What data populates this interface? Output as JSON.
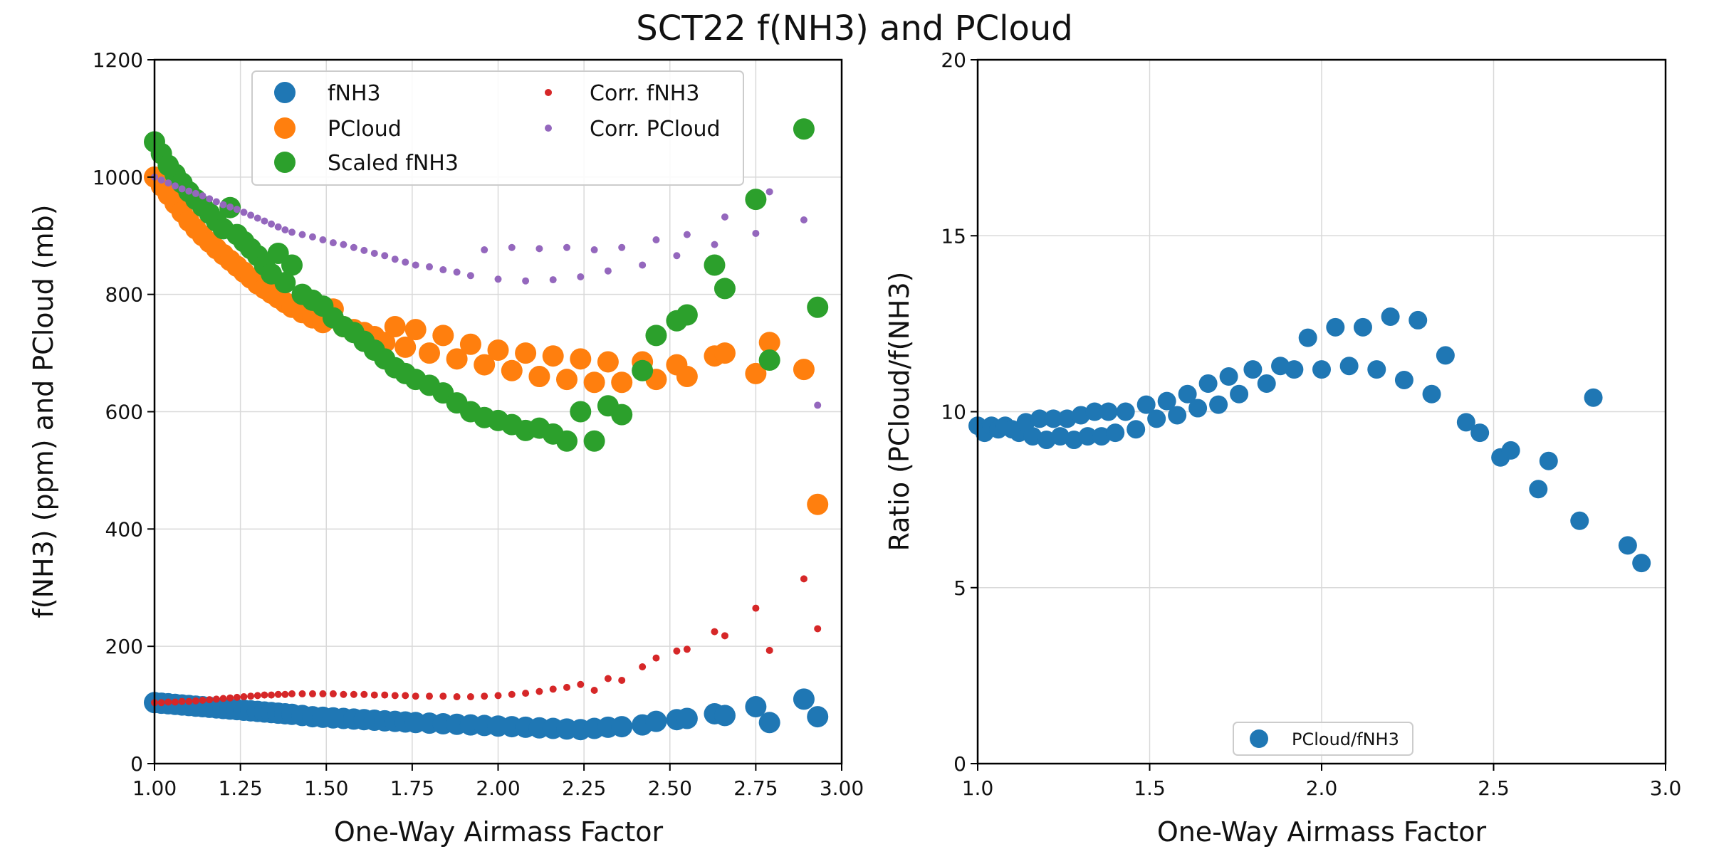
{
  "figure": {
    "title": "SCT22 f(NH3) and PCloud"
  },
  "chart_data": [
    {
      "type": "scatter",
      "xlabel": "One-Way Airmass Factor",
      "ylabel": "f(NH3) (ppm) and PCloud (mb)",
      "xlim": [
        1.0,
        3.0
      ],
      "ylim": [
        0,
        1200
      ],
      "x_ticks": [
        "1.00",
        "1.25",
        "1.50",
        "1.75",
        "2.00",
        "2.25",
        "2.50",
        "2.75",
        "3.00"
      ],
      "y_ticks": [
        "0",
        "200",
        "400",
        "600",
        "800",
        "1000",
        "1200"
      ],
      "grid": true,
      "legend": {
        "position": "top-center",
        "columns": 2,
        "entries": [
          "fNH3",
          "PCloud",
          "Scaled fNH3",
          "Corr. fNH3",
          "Corr. PCloud"
        ]
      },
      "series": [
        {
          "name": "fNH3",
          "color": "#1f77b4",
          "marker_size": "large",
          "x": [
            1.0,
            1.02,
            1.04,
            1.06,
            1.08,
            1.1,
            1.12,
            1.14,
            1.16,
            1.18,
            1.2,
            1.22,
            1.24,
            1.26,
            1.28,
            1.3,
            1.32,
            1.34,
            1.36,
            1.38,
            1.4,
            1.43,
            1.46,
            1.49,
            1.52,
            1.55,
            1.58,
            1.61,
            1.64,
            1.67,
            1.7,
            1.73,
            1.76,
            1.8,
            1.84,
            1.88,
            1.92,
            1.96,
            2.0,
            2.04,
            2.08,
            2.12,
            2.16,
            2.2,
            2.24,
            2.28,
            2.32,
            2.36,
            2.42,
            2.46,
            2.52,
            2.55,
            2.63,
            2.66,
            2.75,
            2.79,
            2.89,
            2.93
          ],
          "y": [
            104,
            103,
            102,
            101,
            100,
            99,
            98,
            97,
            96,
            95,
            94,
            93,
            92,
            91,
            90,
            89,
            88,
            87,
            86,
            85,
            84,
            82,
            80,
            79,
            78,
            77,
            76,
            75,
            74,
            73,
            72,
            71,
            70,
            69,
            68,
            67,
            66,
            65,
            64,
            63,
            62,
            61,
            60,
            59,
            58,
            60,
            62,
            63,
            66,
            72,
            75,
            77,
            85,
            82,
            97,
            70,
            110,
            80
          ]
        },
        {
          "name": "PCloud",
          "color": "#ff7f0e",
          "marker_size": "large",
          "x": [
            1.0,
            1.02,
            1.04,
            1.06,
            1.08,
            1.1,
            1.12,
            1.14,
            1.16,
            1.18,
            1.2,
            1.22,
            1.24,
            1.26,
            1.28,
            1.3,
            1.32,
            1.34,
            1.36,
            1.38,
            1.4,
            1.43,
            1.46,
            1.49,
            1.52,
            1.55,
            1.58,
            1.61,
            1.64,
            1.67,
            1.7,
            1.73,
            1.76,
            1.8,
            1.84,
            1.88,
            1.92,
            1.96,
            2.0,
            2.04,
            2.08,
            2.12,
            2.16,
            2.2,
            2.24,
            2.28,
            2.32,
            2.36,
            2.42,
            2.46,
            2.52,
            2.55,
            2.63,
            2.66,
            2.75,
            2.79,
            2.89,
            2.93
          ],
          "y": [
            1000,
            985,
            970,
            955,
            940,
            925,
            912,
            900,
            889,
            878,
            868,
            858,
            848,
            838,
            828,
            818,
            810,
            802,
            794,
            786,
            778,
            769,
            760,
            752,
            775,
            745,
            740,
            735,
            728,
            718,
            745,
            710,
            740,
            700,
            730,
            690,
            715,
            680,
            705,
            670,
            700,
            660,
            695,
            655,
            690,
            650,
            685,
            650,
            685,
            655,
            680,
            660,
            695,
            700,
            665,
            718,
            672,
            442
          ]
        },
        {
          "name": "Scaled fNH3",
          "color": "#2ca02c",
          "marker_size": "large",
          "x": [
            1.0,
            1.02,
            1.04,
            1.06,
            1.08,
            1.1,
            1.12,
            1.14,
            1.16,
            1.18,
            1.2,
            1.22,
            1.24,
            1.26,
            1.28,
            1.3,
            1.32,
            1.34,
            1.36,
            1.38,
            1.4,
            1.43,
            1.46,
            1.49,
            1.52,
            1.55,
            1.58,
            1.61,
            1.64,
            1.67,
            1.7,
            1.73,
            1.76,
            1.8,
            1.84,
            1.88,
            1.92,
            1.96,
            2.0,
            2.04,
            2.08,
            2.12,
            2.16,
            2.2,
            2.24,
            2.28,
            2.32,
            2.36,
            2.42,
            2.46,
            2.52,
            2.55,
            2.63,
            2.66,
            2.75,
            2.79,
            2.89,
            2.93
          ],
          "y": [
            1060,
            1040,
            1020,
            1005,
            990,
            975,
            962,
            950,
            938,
            925,
            912,
            948,
            902,
            890,
            878,
            866,
            850,
            835,
            870,
            820,
            850,
            800,
            790,
            780,
            760,
            745,
            735,
            720,
            705,
            690,
            675,
            665,
            655,
            645,
            632,
            615,
            600,
            590,
            585,
            578,
            568,
            572,
            562,
            550,
            600,
            550,
            610,
            595,
            670,
            730,
            755,
            765,
            850,
            810,
            962,
            688,
            1082,
            778
          ]
        },
        {
          "name": "Corr. fNH3",
          "color": "#d62728",
          "marker_size": "small",
          "x": [
            1.0,
            1.02,
            1.04,
            1.06,
            1.08,
            1.1,
            1.12,
            1.14,
            1.16,
            1.18,
            1.2,
            1.22,
            1.24,
            1.26,
            1.28,
            1.3,
            1.32,
            1.34,
            1.36,
            1.38,
            1.4,
            1.43,
            1.46,
            1.49,
            1.52,
            1.55,
            1.58,
            1.61,
            1.64,
            1.67,
            1.7,
            1.73,
            1.76,
            1.8,
            1.84,
            1.88,
            1.92,
            1.96,
            2.0,
            2.04,
            2.08,
            2.12,
            2.16,
            2.2,
            2.24,
            2.28,
            2.32,
            2.36,
            2.42,
            2.46,
            2.52,
            2.55,
            2.63,
            2.66,
            2.75,
            2.79,
            2.89,
            2.93
          ],
          "y": [
            104,
            104,
            105,
            105,
            106,
            106,
            107,
            108,
            109,
            110,
            111,
            112,
            113,
            114,
            115,
            116,
            117,
            117,
            118,
            118,
            119,
            119,
            119,
            119,
            119,
            118,
            118,
            118,
            117,
            117,
            116,
            116,
            115,
            115,
            115,
            114,
            114,
            115,
            116,
            118,
            120,
            123,
            127,
            130,
            135,
            125,
            145,
            142,
            165,
            180,
            192,
            195,
            225,
            218,
            265,
            193,
            315,
            230
          ]
        },
        {
          "name": "Corr. PCloud",
          "color": "#9467bd",
          "marker_size": "small",
          "x": [
            1.0,
            1.02,
            1.04,
            1.06,
            1.08,
            1.1,
            1.12,
            1.14,
            1.16,
            1.18,
            1.2,
            1.22,
            1.24,
            1.26,
            1.28,
            1.3,
            1.32,
            1.34,
            1.36,
            1.38,
            1.4,
            1.43,
            1.46,
            1.49,
            1.52,
            1.55,
            1.58,
            1.61,
            1.64,
            1.67,
            1.7,
            1.73,
            1.76,
            1.8,
            1.84,
            1.88,
            1.92,
            1.96,
            2.0,
            2.04,
            2.08,
            2.12,
            2.16,
            2.2,
            2.24,
            2.28,
            2.32,
            2.36,
            2.42,
            2.46,
            2.52,
            2.55,
            2.63,
            2.66,
            2.75,
            2.79,
            2.89,
            2.93
          ],
          "y": [
            1000,
            995,
            990,
            985,
            980,
            976,
            972,
            968,
            963,
            958,
            953,
            949,
            945,
            940,
            935,
            930,
            925,
            920,
            915,
            910,
            906,
            902,
            898,
            893,
            888,
            885,
            880,
            875,
            870,
            866,
            860,
            855,
            850,
            847,
            842,
            838,
            832,
            876,
            826,
            880,
            823,
            878,
            825,
            880,
            830,
            876,
            840,
            880,
            850,
            893,
            866,
            902,
            885,
            932,
            904,
            975,
            927,
            611
          ]
        }
      ]
    },
    {
      "type": "scatter",
      "xlabel": "One-Way Airmass Factor",
      "ylabel": "Ratio (PCloud/f(NH3)",
      "xlim": [
        1.0,
        3.0
      ],
      "ylim": [
        0,
        20
      ],
      "x_ticks": [
        "1.0",
        "1.5",
        "2.0",
        "2.5",
        "3.0"
      ],
      "y_ticks": [
        "0",
        "5",
        "10",
        "15",
        "20"
      ],
      "grid": true,
      "legend": {
        "position": "bottom-center",
        "entries": [
          "PCloud/fNH3"
        ]
      },
      "series": [
        {
          "name": "PCloud/fNH3",
          "color": "#1f77b4",
          "x": [
            1.0,
            1.02,
            1.04,
            1.06,
            1.08,
            1.1,
            1.12,
            1.14,
            1.16,
            1.18,
            1.2,
            1.22,
            1.24,
            1.26,
            1.28,
            1.3,
            1.32,
            1.34,
            1.36,
            1.38,
            1.4,
            1.43,
            1.46,
            1.49,
            1.52,
            1.55,
            1.58,
            1.61,
            1.64,
            1.67,
            1.7,
            1.73,
            1.76,
            1.8,
            1.84,
            1.88,
            1.92,
            1.96,
            2.0,
            2.04,
            2.08,
            2.12,
            2.16,
            2.2,
            2.24,
            2.28,
            2.32,
            2.36,
            2.42,
            2.46,
            2.52,
            2.55,
            2.63,
            2.66,
            2.75,
            2.79,
            2.89,
            2.93
          ],
          "y": [
            9.6,
            9.4,
            9.6,
            9.5,
            9.6,
            9.5,
            9.4,
            9.7,
            9.3,
            9.8,
            9.2,
            9.8,
            9.3,
            9.8,
            9.2,
            9.9,
            9.3,
            10.0,
            9.3,
            10.0,
            9.4,
            10.0,
            9.5,
            10.2,
            9.8,
            10.3,
            9.9,
            10.5,
            10.1,
            10.8,
            10.2,
            11.0,
            10.5,
            11.2,
            10.8,
            11.3,
            11.2,
            12.1,
            11.2,
            12.4,
            11.3,
            12.4,
            11.2,
            12.7,
            10.9,
            12.6,
            10.5,
            11.6,
            9.7,
            9.4,
            8.7,
            8.9,
            7.8,
            8.6,
            6.9,
            10.4,
            6.2,
            5.7
          ]
        }
      ]
    }
  ]
}
